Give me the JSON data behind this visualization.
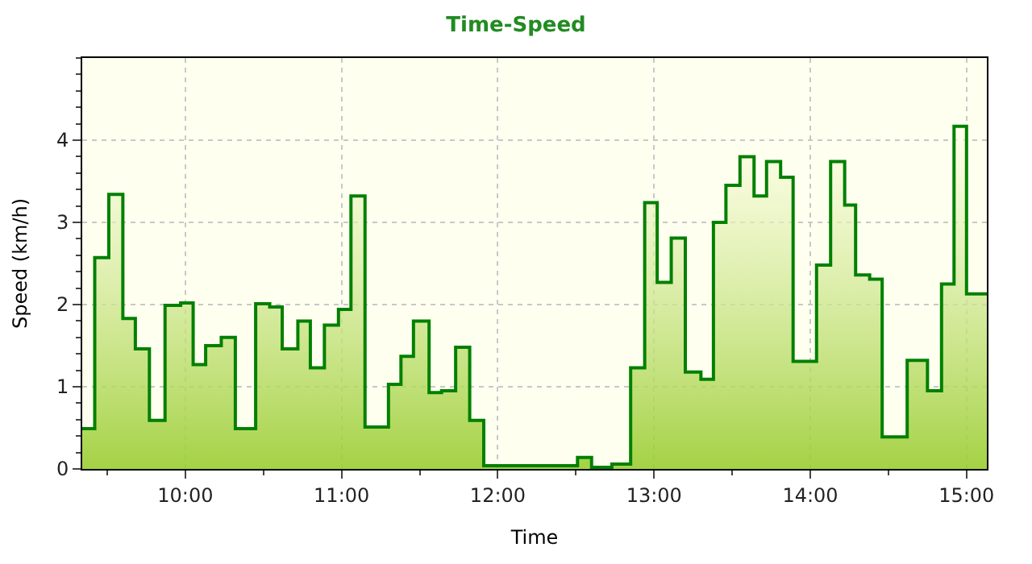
{
  "chart_data": {
    "type": "area",
    "title": "Time-Speed",
    "xlabel": "Time",
    "ylabel": "Speed (km/h)",
    "x": [
      9.34,
      9.42,
      9.42,
      9.51,
      9.51,
      9.6,
      9.6,
      9.68,
      9.68,
      9.77,
      9.77,
      9.87,
      9.87,
      9.97,
      9.97,
      10.05,
      10.05,
      10.13,
      10.13,
      10.23,
      10.23,
      10.32,
      10.32,
      10.45,
      10.45,
      10.54,
      10.54,
      10.62,
      10.62,
      10.72,
      10.72,
      10.8,
      10.8,
      10.89,
      10.89,
      10.98,
      10.98,
      11.06,
      11.06,
      11.15,
      11.15,
      11.3,
      11.3,
      11.38,
      11.38,
      11.46,
      11.46,
      11.56,
      11.56,
      11.64,
      11.64,
      11.73,
      11.73,
      11.82,
      11.82,
      11.91,
      11.91,
      12.51,
      12.51,
      12.6,
      12.6,
      12.73,
      12.73,
      12.85,
      12.85,
      12.94,
      12.94,
      13.02,
      13.02,
      13.11,
      13.11,
      13.2,
      13.2,
      13.3,
      13.3,
      13.38,
      13.38,
      13.46,
      13.46,
      13.55,
      13.55,
      13.64,
      13.64,
      13.72,
      13.72,
      13.81,
      13.81,
      13.89,
      13.89,
      14.04,
      14.04,
      14.13,
      14.13,
      14.22,
      14.22,
      14.29,
      14.29,
      14.38,
      14.38,
      14.46,
      14.46,
      14.62,
      14.62,
      14.75,
      14.75,
      14.84,
      14.84,
      14.92,
      14.92,
      15.0,
      15.0,
      15.13
    ],
    "series": [
      {
        "color": "#008000",
        "values": [
          0.49,
          0.49,
          2.57,
          2.57,
          3.34,
          3.34,
          1.83,
          1.83,
          1.46,
          1.46,
          0.59,
          0.59,
          1.99,
          1.99,
          2.02,
          2.02,
          1.27,
          1.27,
          1.5,
          1.5,
          1.6,
          1.6,
          0.49,
          0.49,
          2.01,
          2.01,
          1.97,
          1.97,
          1.46,
          1.46,
          1.8,
          1.8,
          1.23,
          1.23,
          1.75,
          1.75,
          1.94,
          1.94,
          3.32,
          3.32,
          0.51,
          0.51,
          1.03,
          1.03,
          1.37,
          1.37,
          1.8,
          1.8,
          0.93,
          0.93,
          0.95,
          0.95,
          1.48,
          1.48,
          0.59,
          0.59,
          0.04,
          0.04,
          0.14,
          0.14,
          0.02,
          0.02,
          0.06,
          0.06,
          1.23,
          1.23,
          3.24,
          3.24,
          2.27,
          2.27,
          2.81,
          2.81,
          1.18,
          1.18,
          1.09,
          1.09,
          3.0,
          3.0,
          3.45,
          3.45,
          3.8,
          3.8,
          3.32,
          3.32,
          3.74,
          3.74,
          3.55,
          3.55,
          1.31,
          1.31,
          2.48,
          2.48,
          3.74,
          3.74,
          3.21,
          3.21,
          2.36,
          2.36,
          2.31,
          2.31,
          0.39,
          0.39,
          1.32,
          1.32,
          0.95,
          0.95,
          2.25,
          2.25,
          4.17,
          4.17,
          2.13,
          2.13
        ]
      }
    ],
    "xlim": [
      9.34,
      15.13
    ],
    "ylim": [
      0,
      5
    ],
    "xticks": [
      {
        "value": 10,
        "label": "10:00"
      },
      {
        "value": 11,
        "label": "11:00"
      },
      {
        "value": 12,
        "label": "12:00"
      },
      {
        "value": 13,
        "label": "13:00"
      },
      {
        "value": 14,
        "label": "14:00"
      },
      {
        "value": 15,
        "label": "15:00"
      }
    ],
    "yticks": [
      0,
      1,
      2,
      3,
      4
    ],
    "grid": true,
    "marker": "none",
    "line_style": "solid"
  }
}
